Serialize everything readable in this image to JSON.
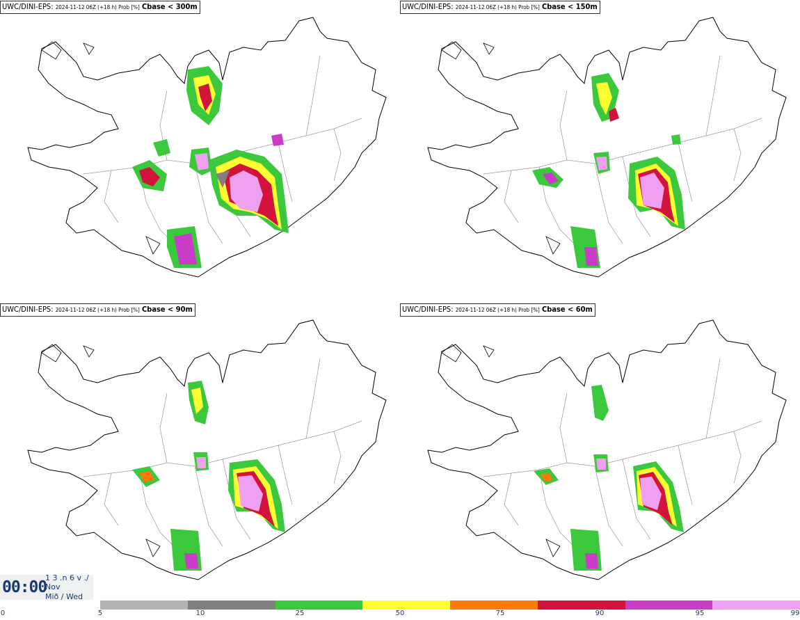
{
  "panels": [
    {
      "model": "UWC/DINI-EPS",
      "run": "2024-11-12 06Z (+18 h) Prob [%]",
      "variable": "Cbase < 300m"
    },
    {
      "model": "UWC/DINI-EPS",
      "run": "2024-11-12 06Z (+18 h) Prob [%]",
      "variable": "Cbase < 150m"
    },
    {
      "model": "UWC/DINI-EPS",
      "run": "2024-11-12 06Z (+18 h) Prob [%]",
      "variable": "Cbase < 90m"
    },
    {
      "model": "UWC/DINI-EPS",
      "run": "2024-11-12 06Z (+18 h) Prob [%]",
      "variable": "Cbase < 60m"
    }
  ],
  "clock": {
    "time": "00:00",
    "line1": "1 3 .n 6 v ./",
    "line2": "Nov",
    "line3": "Mið / Wed"
  },
  "colorbar": {
    "tick_labels": [
      "0",
      "5",
      "10",
      "25",
      "50",
      "75",
      "90",
      "95",
      "99"
    ],
    "colors": [
      "#b4b4b4",
      "#808080",
      "#3cc83c",
      "#ffff32",
      "#ff780a",
      "#d2143c",
      "#c83cc8",
      "#f0a0f0"
    ]
  },
  "colors": {
    "coast": "#000000",
    "border": "#999999"
  }
}
